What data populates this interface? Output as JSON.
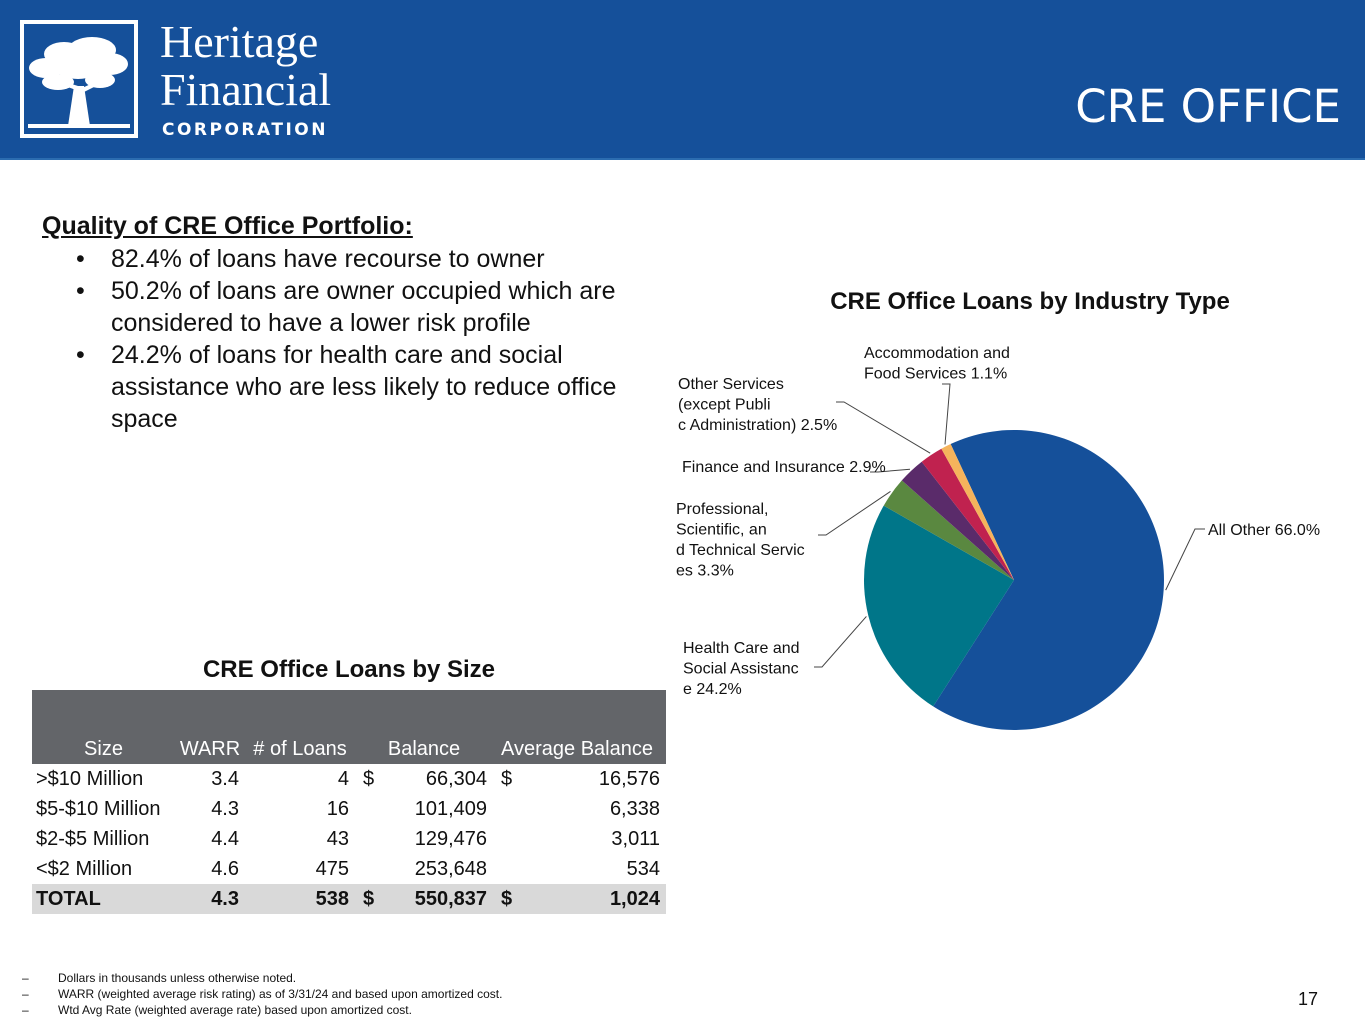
{
  "brand": {
    "name_line1": "Heritage",
    "name_line2": "Financial",
    "corporation": "CORPORATION",
    "tree_icon": "tree-icon"
  },
  "slide_title": "CRE OFFICE",
  "quality": {
    "heading": "Quality of CRE Office Portfolio:",
    "bullets": [
      "82.4% of loans have recourse to owner",
      "50.2% of loans are owner occupied which are considered to have a lower risk profile",
      "24.2% of loans for health care and social assistance who are less likely to reduce office space"
    ]
  },
  "chart_data": {
    "type": "pie",
    "title": "CRE Office Loans by Industry Type",
    "unit": "%",
    "slices": [
      {
        "label": "All Other 66.0%",
        "value": 66.0,
        "color": "#15509a"
      },
      {
        "label": "Health Care and Social Assistance 24.2%",
        "value": 24.2,
        "color": "#007689"
      },
      {
        "label": "Professional, Scientific, and Technical Services 3.3%",
        "value": 3.3,
        "color": "#5a8840"
      },
      {
        "label": "Finance and Insurance 2.9%",
        "value": 2.9,
        "color": "#5a2b6a"
      },
      {
        "label": "Other Services (except Public Administration) 2.5%",
        "value": 2.5,
        "color": "#c0224f"
      },
      {
        "label": "Accommodation and Food Services 1.1%",
        "value": 1.1,
        "color": "#f5b35c"
      }
    ]
  },
  "size_table": {
    "title": "CRE Office Loans by Size",
    "headers": [
      "Size",
      "WARR",
      "# of Loans",
      "Balance",
      "Average Balance"
    ],
    "rows": [
      {
        "size": ">$10 Million",
        "warr": "3.4",
        "loans": "4",
        "bal_cur": "$",
        "balance": "66,304",
        "avg_cur": "$",
        "average": "16,576"
      },
      {
        "size": "$5-$10 Million",
        "warr": "4.3",
        "loans": "16",
        "bal_cur": "",
        "balance": "101,409",
        "avg_cur": "",
        "average": "6,338"
      },
      {
        "size": "$2-$5 Million",
        "warr": "4.4",
        "loans": "43",
        "bal_cur": "",
        "balance": "129,476",
        "avg_cur": "",
        "average": "3,011"
      },
      {
        "size": "<$2 Million",
        "warr": "4.6",
        "loans": "475",
        "bal_cur": "",
        "balance": "253,648",
        "avg_cur": "",
        "average": "534"
      }
    ],
    "total": {
      "size": "TOTAL",
      "warr": "4.3",
      "loans": "538",
      "bal_cur": "$",
      "balance": "550,837",
      "avg_cur": "$",
      "average": "1,024"
    }
  },
  "footnotes": [
    "Dollars in thousands unless otherwise noted.",
    "WARR  (weighted average risk rating) as of 3/31/24 and based upon amortized cost.",
    "Wtd Avg Rate (weighted average rate) based upon amortized cost."
  ],
  "page_number": "17"
}
